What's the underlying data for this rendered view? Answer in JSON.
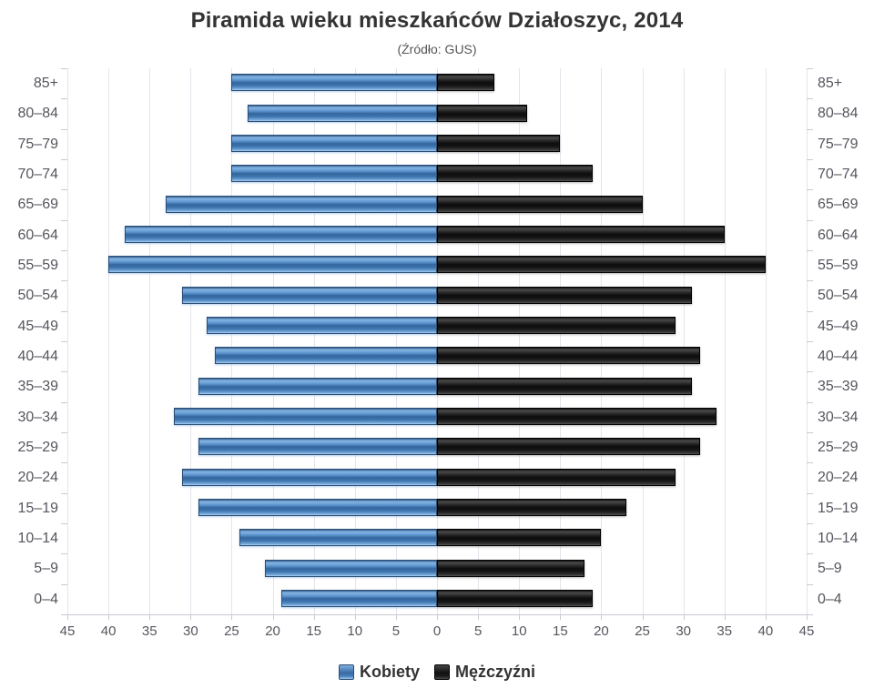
{
  "title": "Piramida wieku mieszkańców Działoszyc, 2014",
  "subtitle": "(Źródło: GUS)",
  "chart_data": {
    "type": "bar",
    "variant": "population-pyramid",
    "orientation": "horizontal",
    "title": "Piramida wieku mieszkańców Działoszyc, 2014",
    "subtitle": "(Źródło: GUS)",
    "categories_top_to_bottom": [
      "85+",
      "80–84",
      "75–79",
      "70–74",
      "65–69",
      "60–64",
      "55–59",
      "50–54",
      "45–49",
      "40–44",
      "35–39",
      "30–34",
      "25–29",
      "20–24",
      "15–19",
      "10–14",
      "5–9",
      "0–4"
    ],
    "series": [
      {
        "name": "Kobiety",
        "side": "left",
        "color": "#3d74ad",
        "values": [
          25,
          23,
          25,
          25,
          33,
          38,
          40,
          31,
          28,
          27,
          29,
          32,
          29,
          31,
          29,
          24,
          21,
          19
        ]
      },
      {
        "name": "Mężczyźni",
        "side": "right",
        "color": "#1a1a1a",
        "values": [
          7,
          11,
          15,
          19,
          25,
          35,
          40,
          31,
          29,
          32,
          31,
          34,
          32,
          29,
          23,
          20,
          18,
          19
        ]
      }
    ],
    "x_axis": {
      "min": 0,
      "max": 45,
      "tick_interval": 5,
      "tick_labels": [
        "45",
        "40",
        "35",
        "30",
        "25",
        "20",
        "15",
        "10",
        "5",
        "0",
        "5",
        "10",
        "15",
        "20",
        "25",
        "30",
        "35",
        "40",
        "45"
      ]
    },
    "grid": true,
    "legend_position": "bottom",
    "colors": {
      "grid": "#e4e4ec",
      "axis": "#c9c9d4",
      "label_text": "#55565e",
      "title_text": "#333333",
      "subtitle_text": "#555555"
    }
  },
  "legend": {
    "items": [
      {
        "label": "Kobiety",
        "color": "#3d74ad"
      },
      {
        "label": "Mężczyźni",
        "color": "#1a1a1a"
      }
    ]
  }
}
